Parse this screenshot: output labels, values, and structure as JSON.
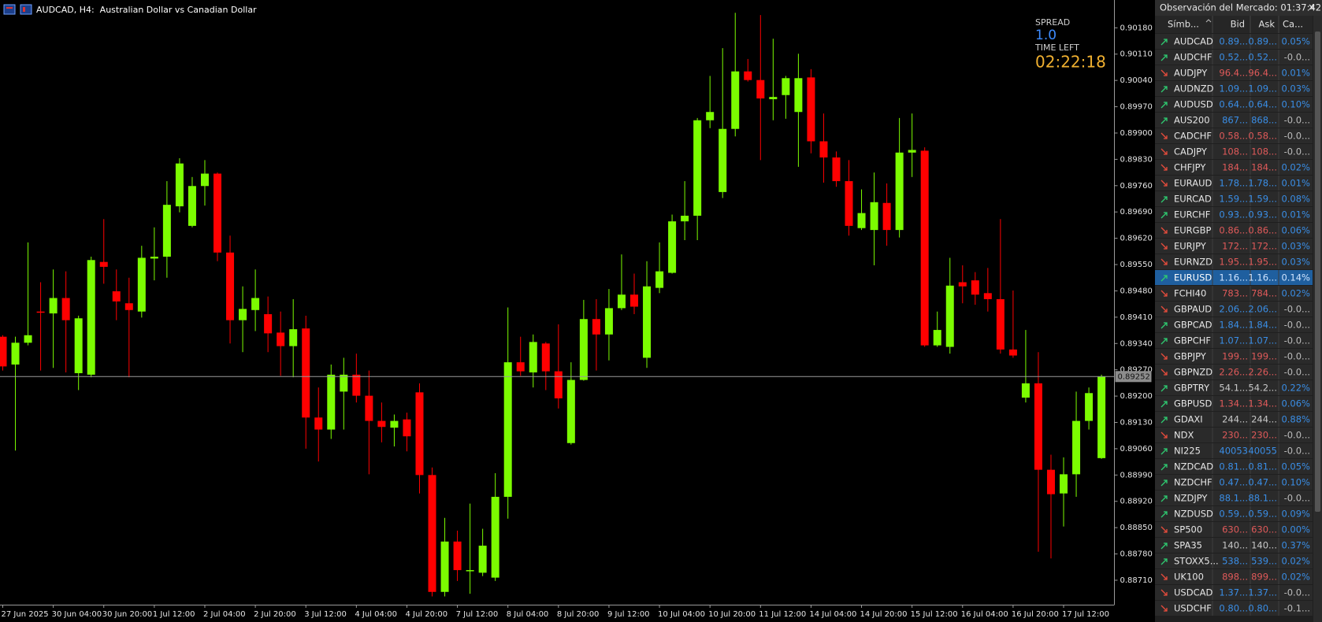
{
  "window": {
    "title": "AUDCAD, H4:  Australian Dollar vs Canadian Dollar"
  },
  "info": {
    "spread_label": "SPREAD",
    "spread": "1.0",
    "time_left_label": "TIME LEFT",
    "time_left": "02:22:18"
  },
  "chart_data": {
    "type": "candlestick",
    "colors": {
      "up": "#7cfc00",
      "down": "#ff0000"
    },
    "grid": false,
    "current_price": 0.89252,
    "ylim": [
      0.88645,
      0.90254
    ],
    "yticks": [
      {
        "value": 0.9018,
        "label": "0.90180"
      },
      {
        "value": 0.9011,
        "label": "0.90110"
      },
      {
        "value": 0.9004,
        "label": "0.90040"
      },
      {
        "value": 0.8997,
        "label": "0.89970"
      },
      {
        "value": 0.899,
        "label": "0.89900"
      },
      {
        "value": 0.8983,
        "label": "0.89830"
      },
      {
        "value": 0.8976,
        "label": "0.89760"
      },
      {
        "value": 0.8969,
        "label": "0.89690"
      },
      {
        "value": 0.8962,
        "label": "0.89620"
      },
      {
        "value": 0.8955,
        "label": "0.89550"
      },
      {
        "value": 0.8948,
        "label": "0.89480"
      },
      {
        "value": 0.8941,
        "label": "0.89410"
      },
      {
        "value": 0.8934,
        "label": "0.89340"
      },
      {
        "value": 0.8927,
        "label": "0.89270"
      },
      {
        "value": 0.892,
        "label": "0.89200"
      },
      {
        "value": 0.8913,
        "label": "0.89130"
      },
      {
        "value": 0.8906,
        "label": "0.89060"
      },
      {
        "value": 0.8899,
        "label": "0.88990"
      },
      {
        "value": 0.8892,
        "label": "0.88920"
      },
      {
        "value": 0.8885,
        "label": "0.88850"
      },
      {
        "value": 0.8878,
        "label": "0.88780"
      },
      {
        "value": 0.8871,
        "label": "0.88710"
      }
    ],
    "categories": [
      "27 Jun 2025",
      null,
      null,
      null,
      "30 Jun 04:00",
      null,
      null,
      null,
      "30 Jun 20:00",
      null,
      null,
      null,
      "1 Jul 12:00",
      null,
      null,
      null,
      "2 Jul 04:00",
      null,
      null,
      null,
      "2 Jul 20:00",
      null,
      null,
      null,
      "3 Jul 12:00",
      null,
      null,
      null,
      "4 Jul 04:00",
      null,
      null,
      null,
      "4 Jul 20:00",
      null,
      null,
      null,
      "7 Jul 12:00",
      null,
      null,
      null,
      "8 Jul 04:00",
      null,
      null,
      null,
      "8 Jul 20:00",
      null,
      null,
      null,
      "9 Jul 12:00",
      null,
      null,
      null,
      "10 Jul 04:00",
      null,
      null,
      null,
      "10 Jul 20:00",
      null,
      null,
      null,
      "11 Jul 12:00",
      null,
      null,
      null,
      "14 Jul 04:00",
      null,
      null,
      null,
      "14 Jul 20:00",
      null,
      null,
      null,
      "15 Jul 12:00",
      null,
      null,
      null,
      "16 Jul 04:00",
      null,
      null,
      null,
      "16 Jul 20:00",
      null,
      null,
      null,
      "17 Jul 12:00",
      null,
      null,
      null
    ],
    "open": [
      0.89358,
      0.89284,
      0.89342,
      0.89425,
      0.8942,
      0.89461,
      0.89261,
      0.89257,
      0.89557,
      0.89479,
      0.89447,
      0.89425,
      0.89566,
      0.89571,
      0.89705,
      0.89653,
      0.89759,
      0.89792,
      0.89582,
      0.89402,
      0.89429,
      0.89418,
      0.89369,
      0.89333,
      0.8938,
      0.89143,
      0.89111,
      0.89212,
      0.89257,
      0.89201,
      0.89134,
      0.89116,
      0.89138,
      0.8921,
      0.8899,
      0.88679,
      0.88813,
      0.88735,
      0.8873,
      0.88717,
      0.88932,
      0.8929,
      0.89263,
      0.8934,
      0.89266,
      0.89075,
      0.89243,
      0.89405,
      0.89364,
      0.89434,
      0.8947,
      0.89302,
      0.89488,
      0.89528,
      0.89665,
      0.8968,
      0.89934,
      0.89743,
      0.89911,
      0.90064,
      0.90041,
      0.8999,
      0.90001,
      0.89956,
      0.90048,
      0.89878,
      0.89835,
      0.89772,
      0.89647,
      0.89642,
      0.89714,
      0.89642,
      0.89848,
      0.89853,
      0.89335,
      0.89331,
      0.89503,
      0.89508,
      0.89474,
      0.89458,
      0.89324,
      0.89196,
      0.89234,
      0.89004,
      0.88941,
      0.88992,
      0.89134,
      0.89035
    ],
    "high": [
      0.89362,
      0.89358,
      0.89609,
      0.89503,
      0.89537,
      0.89532,
      0.89414,
      0.89571,
      0.89671,
      0.89537,
      0.89515,
      0.896,
      0.89649,
      0.89772,
      0.89833,
      0.89783,
      0.89828,
      0.89795,
      0.89627,
      0.89492,
      0.89537,
      0.89465,
      0.89425,
      0.89458,
      0.89414,
      0.89223,
      0.89284,
      0.89302,
      0.89313,
      0.89268,
      0.89183,
      0.89151,
      0.89156,
      0.89234,
      0.8901,
      0.88876,
      0.88842,
      0.88914,
      0.88847,
      0.88995,
      0.89436,
      0.89358,
      0.89364,
      0.89344,
      0.89391,
      0.8929,
      0.89456,
      0.89458,
      0.89485,
      0.89577,
      0.89526,
      0.89559,
      0.89609,
      0.89683,
      0.89772,
      0.8994,
      0.90052,
      0.90126,
      0.9022,
      0.90097,
      0.90214,
      0.90151,
      0.90052,
      0.90111,
      0.9007,
      0.89952,
      0.89851,
      0.89828,
      0.8975,
      0.89795,
      0.89766,
      0.8994,
      0.89952,
      0.89862,
      0.89425,
      0.89568,
      0.89548,
      0.8953,
      0.89541,
      0.89671,
      0.89481,
      0.89376,
      0.89317,
      0.89044,
      0.89037,
      0.89212,
      0.89223,
      0.89257
    ],
    "low": [
      0.89268,
      0.89055,
      0.89335,
      0.89268,
      0.89275,
      0.89263,
      0.89216,
      0.8925,
      0.89499,
      0.89402,
      0.8925,
      0.89409,
      0.89508,
      0.89515,
      0.89689,
      0.89649,
      0.89707,
      0.89559,
      0.8934,
      0.89317,
      0.89373,
      0.89317,
      0.89254,
      0.8925,
      0.8906,
      0.89026,
      0.89086,
      0.89111,
      0.89183,
      0.88992,
      0.89077,
      0.89066,
      0.89053,
      0.88941,
      0.88667,
      0.88667,
      0.88708,
      0.88674,
      0.88721,
      0.88708,
      0.88874,
      0.89254,
      0.89223,
      0.89216,
      0.89167,
      0.89071,
      0.89241,
      0.89268,
      0.89295,
      0.89429,
      0.89418,
      0.89275,
      0.89474,
      0.89526,
      0.89615,
      0.89615,
      0.89913,
      0.89727,
      0.89891,
      0.90037,
      0.89828,
      0.89934,
      0.89938,
      0.8981,
      0.89846,
      0.89768,
      0.89757,
      0.89627,
      0.89642,
      0.89548,
      0.896,
      0.89622,
      0.89783,
      0.89331,
      0.89331,
      0.89313,
      0.89447,
      0.89443,
      0.89425,
      0.89313,
      0.89302,
      0.89183,
      0.88786,
      0.88768,
      0.88853,
      0.88932,
      0.89111,
      0.89033
    ],
    "close": [
      0.89279,
      0.89342,
      0.89362,
      0.89423,
      0.89461,
      0.89402,
      0.89407,
      0.89562,
      0.89544,
      0.89452,
      0.89429,
      0.89568,
      0.89571,
      0.89709,
      0.89819,
      0.89759,
      0.89792,
      0.89582,
      0.89402,
      0.89432,
      0.89461,
      0.89367,
      0.89333,
      0.89378,
      0.89143,
      0.89111,
      0.89257,
      0.89257,
      0.89201,
      0.89134,
      0.89118,
      0.89134,
      0.89093,
      0.8899,
      0.88679,
      0.88813,
      0.88737,
      0.88737,
      0.88802,
      0.88932,
      0.8929,
      0.89266,
      0.89344,
      0.89266,
      0.89194,
      0.89243,
      0.89405,
      0.89364,
      0.89434,
      0.8947,
      0.89438,
      0.89492,
      0.89532,
      0.89665,
      0.8968,
      0.89934,
      0.89956,
      0.89911,
      0.90064,
      0.90041,
      0.89992,
      0.89996,
      0.90046,
      0.90046,
      0.89878,
      0.89835,
      0.89772,
      0.89653,
      0.89687,
      0.89716,
      0.89642,
      0.89848,
      0.89855,
      0.89335,
      0.89376,
      0.89494,
      0.89492,
      0.8947,
      0.89458,
      0.89324,
      0.89308,
      0.89234,
      0.89004,
      0.88939,
      0.88992,
      0.89134,
      0.89208,
      0.89252
    ]
  },
  "market_watch": {
    "title": "Observación del Mercado: 01:37:42",
    "columns": [
      "Símb...",
      "Bid",
      "Ask",
      "Ca..."
    ],
    "selected_row": 15,
    "rows": [
      {
        "symbol": "AUDCAD",
        "bid": "0.89...",
        "ask": "0.89...",
        "change": "0.05%",
        "arrow": "up",
        "tone": "up"
      },
      {
        "symbol": "AUDCHF",
        "bid": "0.52...",
        "ask": "0.52...",
        "change": "-0.0...",
        "arrow": "up",
        "tone": "up"
      },
      {
        "symbol": "AUDJPY",
        "bid": "96.4...",
        "ask": "96.4...",
        "change": "0.01%",
        "arrow": "down",
        "tone": "down"
      },
      {
        "symbol": "AUDNZD",
        "bid": "1.09...",
        "ask": "1.09...",
        "change": "0.03%",
        "arrow": "up",
        "tone": "up"
      },
      {
        "symbol": "AUDUSD",
        "bid": "0.64...",
        "ask": "0.64...",
        "change": "0.10%",
        "arrow": "up",
        "tone": "up"
      },
      {
        "symbol": "AUS200",
        "bid": "867...",
        "ask": "868...",
        "change": "-0.0...",
        "arrow": "up",
        "tone": "up"
      },
      {
        "symbol": "CADCHF",
        "bid": "0.58...",
        "ask": "0.58...",
        "change": "-0.0...",
        "arrow": "down",
        "tone": "down"
      },
      {
        "symbol": "CADJPY",
        "bid": "108...",
        "ask": "108...",
        "change": "-0.0...",
        "arrow": "down",
        "tone": "down"
      },
      {
        "symbol": "CHFJPY",
        "bid": "184...",
        "ask": "184...",
        "change": "0.02%",
        "arrow": "down",
        "tone": "down"
      },
      {
        "symbol": "EURAUD",
        "bid": "1.78...",
        "ask": "1.78...",
        "change": "0.01%",
        "arrow": "down",
        "tone": "up"
      },
      {
        "symbol": "EURCAD",
        "bid": "1.59...",
        "ask": "1.59...",
        "change": "0.08%",
        "arrow": "up",
        "tone": "up"
      },
      {
        "symbol": "EURCHF",
        "bid": "0.93...",
        "ask": "0.93...",
        "change": "0.01%",
        "arrow": "up",
        "tone": "up"
      },
      {
        "symbol": "EURGBP",
        "bid": "0.86...",
        "ask": "0.86...",
        "change": "0.06%",
        "arrow": "down",
        "tone": "down"
      },
      {
        "symbol": "EURJPY",
        "bid": "172...",
        "ask": "172...",
        "change": "0.03%",
        "arrow": "down",
        "tone": "down"
      },
      {
        "symbol": "EURNZD",
        "bid": "1.95...",
        "ask": "1.95...",
        "change": "0.03%",
        "arrow": "down",
        "tone": "down"
      },
      {
        "symbol": "EURUSD",
        "bid": "1.16...",
        "ask": "1.16...",
        "change": "0.14%",
        "arrow": "up",
        "tone": "up"
      },
      {
        "symbol": "FCHI40",
        "bid": "783...",
        "ask": "784...",
        "change": "0.02%",
        "arrow": "down",
        "tone": "down"
      },
      {
        "symbol": "GBPAUD",
        "bid": "2.06...",
        "ask": "2.06...",
        "change": "-0.0...",
        "arrow": "down",
        "tone": "up"
      },
      {
        "symbol": "GBPCAD",
        "bid": "1.84...",
        "ask": "1.84...",
        "change": "-0.0...",
        "arrow": "up",
        "tone": "up"
      },
      {
        "symbol": "GBPCHF",
        "bid": "1.07...",
        "ask": "1.07...",
        "change": "-0.0...",
        "arrow": "up",
        "tone": "up"
      },
      {
        "symbol": "GBPJPY",
        "bid": "199...",
        "ask": "199...",
        "change": "-0.0...",
        "arrow": "down",
        "tone": "down"
      },
      {
        "symbol": "GBPNZD",
        "bid": "2.26...",
        "ask": "2.26...",
        "change": "-0.0...",
        "arrow": "down",
        "tone": "down"
      },
      {
        "symbol": "GBPTRY",
        "bid": "54.1...",
        "ask": "54.2...",
        "change": "0.22%",
        "arrow": "up",
        "tone": "none"
      },
      {
        "symbol": "GBPUSD",
        "bid": "1.34...",
        "ask": "1.34...",
        "change": "0.06%",
        "arrow": "up",
        "tone": "down"
      },
      {
        "symbol": "GDAXI",
        "bid": "244...",
        "ask": "244...",
        "change": "0.88%",
        "arrow": "up",
        "tone": "none"
      },
      {
        "symbol": "NDX",
        "bid": "230...",
        "ask": "230...",
        "change": "-0.0...",
        "arrow": "down",
        "tone": "down"
      },
      {
        "symbol": "NI225",
        "bid": "40053",
        "ask": "40055",
        "change": "-0.0...",
        "arrow": "up",
        "tone": "up"
      },
      {
        "symbol": "NZDCAD",
        "bid": "0.81...",
        "ask": "0.81...",
        "change": "0.05%",
        "arrow": "up",
        "tone": "up"
      },
      {
        "symbol": "NZDCHF",
        "bid": "0.47...",
        "ask": "0.47...",
        "change": "0.10%",
        "arrow": "up",
        "tone": "up"
      },
      {
        "symbol": "NZDJPY",
        "bid": "88.1...",
        "ask": "88.1...",
        "change": "-0.0...",
        "arrow": "up",
        "tone": "up"
      },
      {
        "symbol": "NZDUSD",
        "bid": "0.59...",
        "ask": "0.59...",
        "change": "0.09%",
        "arrow": "up",
        "tone": "up"
      },
      {
        "symbol": "SP500",
        "bid": "630...",
        "ask": "630...",
        "change": "0.00%",
        "arrow": "down",
        "tone": "down"
      },
      {
        "symbol": "SPA35",
        "bid": "140...",
        "ask": "140...",
        "change": "0.37%",
        "arrow": "up",
        "tone": "none"
      },
      {
        "symbol": "STOXX5...",
        "bid": "538...",
        "ask": "539...",
        "change": "0.02%",
        "arrow": "up",
        "tone": "up"
      },
      {
        "symbol": "UK100",
        "bid": "898...",
        "ask": "899...",
        "change": "0.02%",
        "arrow": "down",
        "tone": "down"
      },
      {
        "symbol": "USDCAD",
        "bid": "1.37...",
        "ask": "1.37...",
        "change": "-0.0...",
        "arrow": "down",
        "tone": "up"
      },
      {
        "symbol": "USDCHF",
        "bid": "0.80...",
        "ask": "0.80...",
        "change": "-0.1...",
        "arrow": "down",
        "tone": "up"
      }
    ]
  }
}
